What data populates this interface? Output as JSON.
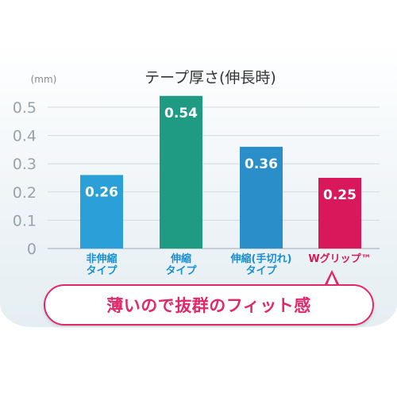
{
  "chart_data": {
    "type": "bar",
    "title": "テープ厚さ(伸長時)",
    "unit_label": "(mm)",
    "ylim": [
      0,
      0.5
    ],
    "yticks": [
      "0",
      "0.1",
      "0.2",
      "0.3",
      "0.4",
      "0.5"
    ],
    "categories": [
      [
        "非伸縮",
        "タイプ"
      ],
      [
        "伸縮",
        "タイプ"
      ],
      [
        "伸縮(手切れ)",
        "タイプ"
      ],
      [
        "Wグリップ™"
      ]
    ],
    "values": [
      0.26,
      0.54,
      0.36,
      0.25
    ],
    "value_labels": [
      "0.26",
      "0.54",
      "0.36",
      "0.25"
    ],
    "bar_colors": [
      "#2a9fd8",
      "#1e9b82",
      "#2a8fc9",
      "#d8185a"
    ],
    "label_colors": [
      "#1a8fd0",
      "#1a8fd0",
      "#1a8fd0",
      "#d8185a"
    ],
    "grid": true
  },
  "callout": {
    "text": "薄いので抜群のフィット感"
  }
}
